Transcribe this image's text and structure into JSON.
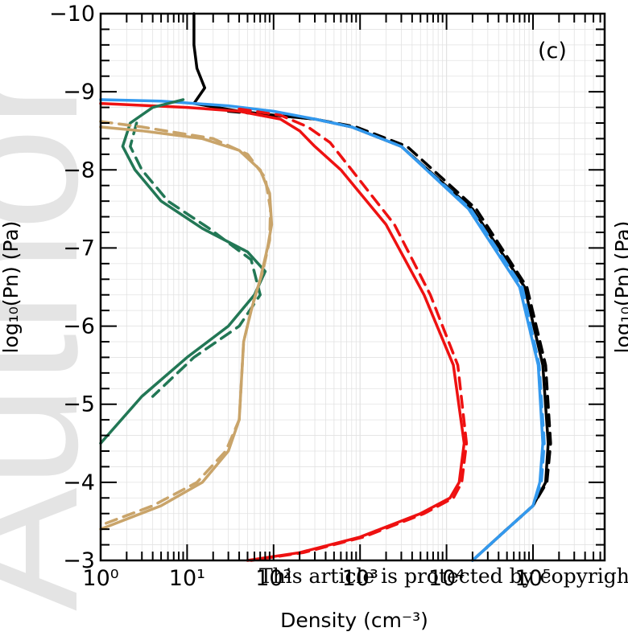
{
  "watermark": "Author M",
  "copyright_notice": "This article is protected by copyright.",
  "chart_data": {
    "type": "line",
    "panel_label": "(c)",
    "xlabel": "Density (cm⁻³)",
    "ylabel": "log₁₀(Pn) (Pa)",
    "right_panel_ylabel": "log₁₀(Pn) (Pa)",
    "x_scale": "log",
    "xlim": [
      1,
      200000
    ],
    "ylim": [
      -10,
      -3
    ],
    "y_inverted": true,
    "grid": true,
    "x_tick_labels": [
      "10⁰",
      "10¹",
      "10²",
      "10³",
      "10⁴",
      "10⁵"
    ],
    "y_tick_labels": [
      "−3",
      "−4",
      "−5",
      "−6",
      "−7",
      "−8",
      "−9",
      "−10"
    ],
    "colors": {
      "black": "#000000",
      "blue": "#3399ee",
      "red": "#ee1111",
      "green": "#227755",
      "tan": "#c9a46a"
    },
    "series": [
      {
        "color": "#000000",
        "style": "solid",
        "x": [
          12,
          12,
          13,
          16,
          12,
          40,
          100,
          300,
          800,
          3000,
          20000,
          80000,
          130000,
          150000,
          140000,
          100000,
          50000,
          20000
        ],
        "y": [
          -10,
          -9.6,
          -9.3,
          -9.05,
          -8.85,
          -8.75,
          -8.7,
          -8.65,
          -8.55,
          -8.3,
          -7.5,
          -6.5,
          -5.5,
          -4.5,
          -4.0,
          -3.7,
          -3.4,
          -3.0
        ]
      },
      {
        "color": "#000000",
        "style": "dashed",
        "x": [
          30,
          100,
          300,
          900,
          3500,
          22000,
          85000,
          140000,
          160000,
          145000,
          100000,
          50000,
          20000
        ],
        "y": [
          -8.75,
          -8.7,
          -8.65,
          -8.55,
          -8.3,
          -7.5,
          -6.5,
          -5.5,
          -4.5,
          -4.0,
          -3.7,
          -3.4,
          -3.0
        ]
      },
      {
        "color": "#3399ee",
        "style": "solid",
        "x": [
          1,
          5,
          30,
          100,
          300,
          800,
          3000,
          18000,
          70000,
          115000,
          130000,
          120000,
          100000,
          50000,
          20000
        ],
        "y": [
          -8.9,
          -8.88,
          -8.82,
          -8.75,
          -8.65,
          -8.55,
          -8.3,
          -7.5,
          -6.5,
          -5.5,
          -4.5,
          -4.0,
          -3.7,
          -3.4,
          -3.0
        ]
      },
      {
        "color": "#3399ee",
        "style": "dashed",
        "x": [
          300,
          800,
          3000,
          19000,
          75000,
          118000,
          135000,
          125000,
          100000,
          50000,
          20000
        ],
        "y": [
          -8.65,
          -8.55,
          -8.3,
          -7.5,
          -6.5,
          -5.5,
          -4.5,
          -4.0,
          -3.7,
          -3.4,
          -3.0
        ]
      },
      {
        "color": "#ee1111",
        "style": "solid",
        "x": [
          1,
          10,
          40,
          120,
          200,
          300,
          600,
          2000,
          5500,
          12000,
          16000,
          14000,
          11000,
          5000,
          1000,
          200,
          50
        ],
        "y": [
          -8.85,
          -8.8,
          -8.75,
          -8.65,
          -8.5,
          -8.3,
          -8.0,
          -7.3,
          -6.4,
          -5.5,
          -4.5,
          -4.0,
          -3.8,
          -3.6,
          -3.3,
          -3.1,
          -3.0
        ]
      },
      {
        "color": "#ee1111",
        "style": "dashed",
        "x": [
          40,
          120,
          250,
          450,
          800,
          2500,
          6500,
          13500,
          17000,
          15000,
          12000,
          5500,
          1100,
          220,
          55
        ],
        "y": [
          -8.78,
          -8.7,
          -8.55,
          -8.35,
          -8.0,
          -7.3,
          -6.4,
          -5.5,
          -4.5,
          -4.0,
          -3.8,
          -3.6,
          -3.3,
          -3.1,
          -3.0
        ]
      },
      {
        "color": "#227755",
        "style": "solid",
        "x": [
          9,
          4,
          2.2,
          1.8,
          2.5,
          5,
          15,
          50,
          80,
          60,
          30,
          10,
          3,
          1
        ],
        "y": [
          -8.9,
          -8.8,
          -8.6,
          -8.3,
          -8.0,
          -7.6,
          -7.25,
          -6.95,
          -6.7,
          -6.4,
          -6.0,
          -5.6,
          -5.1,
          -4.5
        ]
      },
      {
        "color": "#227755",
        "style": "dashed",
        "x": [
          2.6,
          2.2,
          3.0,
          6,
          18,
          55,
          70,
          40,
          12,
          4
        ],
        "y": [
          -8.6,
          -8.3,
          -8.0,
          -7.6,
          -7.25,
          -6.85,
          -6.4,
          -6.0,
          -5.6,
          -5.1
        ]
      },
      {
        "color": "#c9a46a",
        "style": "solid",
        "x": [
          1,
          3,
          15,
          40,
          70,
          90,
          95,
          85,
          70,
          55,
          45,
          42,
          40,
          30,
          15,
          5,
          1
        ],
        "y": [
          -8.55,
          -8.5,
          -8.4,
          -8.25,
          -8.0,
          -7.7,
          -7.3,
          -7.0,
          -6.6,
          -6.2,
          -5.8,
          -5.2,
          -4.8,
          -4.4,
          -4.0,
          -3.7,
          -3.4
        ]
      },
      {
        "color": "#c9a46a",
        "style": "dashed",
        "x": [
          1,
          3,
          20,
          50,
          80,
          92,
          90,
          75,
          58,
          45,
          42,
          40,
          28,
          13,
          4,
          1
        ],
        "y": [
          -8.62,
          -8.55,
          -8.4,
          -8.2,
          -7.9,
          -7.5,
          -7.1,
          -6.7,
          -6.3,
          -5.8,
          -5.2,
          -4.8,
          -4.4,
          -4.0,
          -3.7,
          -3.45
        ]
      }
    ]
  }
}
